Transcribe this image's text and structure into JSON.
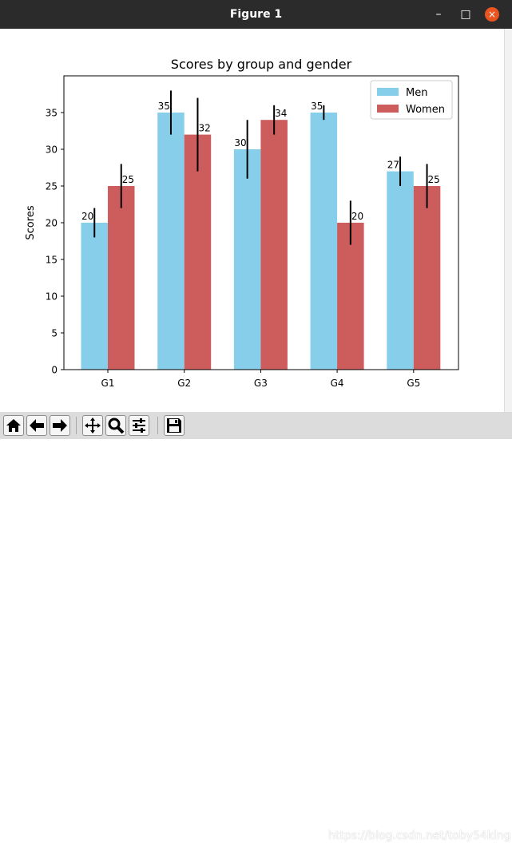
{
  "window": {
    "title": "Figure 1",
    "controls": {
      "minimize": "–",
      "maximize": "□",
      "close": "×"
    }
  },
  "toolbar": {
    "tools": [
      {
        "name": "home-icon"
      },
      {
        "name": "back-arrow-icon"
      },
      {
        "name": "forward-arrow-icon"
      },
      {
        "name": "pan-icon"
      },
      {
        "name": "zoom-icon"
      },
      {
        "name": "configure-subplots-icon"
      },
      {
        "name": "save-icon"
      }
    ]
  },
  "watermark": "https://blog.csdn.net/toby54king",
  "colors": {
    "men": "#87ceeb",
    "women": "#cd5c5c"
  },
  "chart_data": {
    "type": "bar",
    "title": "Scores by group and gender",
    "xlabel": "",
    "ylabel": "Scores",
    "categories": [
      "G1",
      "G2",
      "G3",
      "G4",
      "G5"
    ],
    "ylim": [
      0,
      40
    ],
    "yticks": [
      0,
      5,
      10,
      15,
      20,
      25,
      30,
      35
    ],
    "legend_position": "top-right",
    "series": [
      {
        "name": "Men",
        "values": [
          20,
          35,
          30,
          35,
          27
        ],
        "errors": [
          2,
          3,
          4,
          1,
          2
        ],
        "labels": [
          "20",
          "35",
          "30",
          "35",
          "27"
        ],
        "label_align": "left"
      },
      {
        "name": "Women",
        "values": [
          25,
          32,
          34,
          20,
          25
        ],
        "errors": [
          3,
          5,
          2,
          3,
          3
        ],
        "labels": [
          "25",
          "32",
          "34",
          "20",
          "25"
        ],
        "label_align": "right"
      }
    ]
  }
}
